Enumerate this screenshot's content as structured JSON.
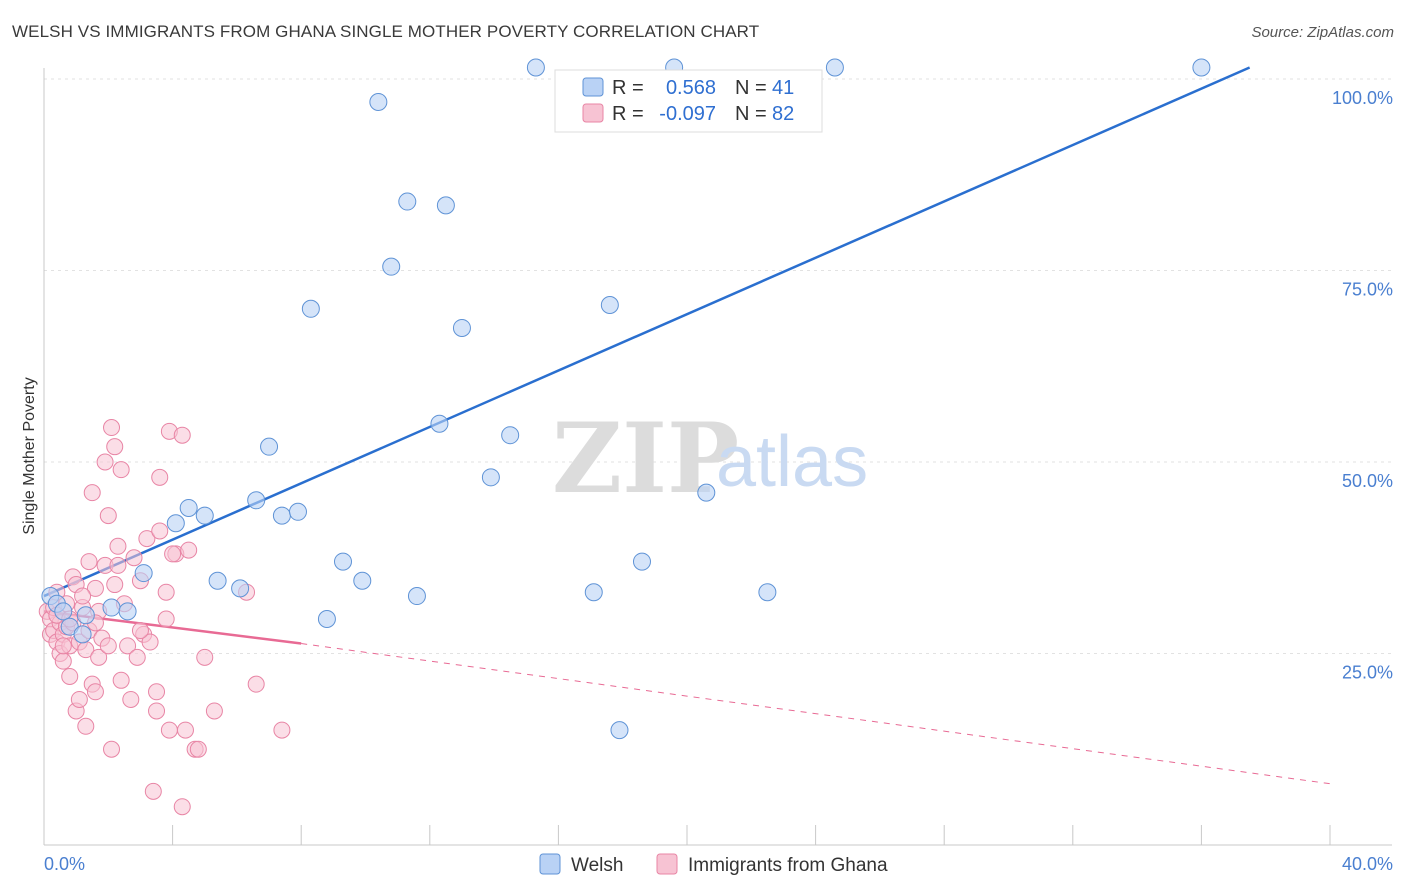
{
  "header": {
    "title": "WELSH VS IMMIGRANTS FROM GHANA SINGLE MOTHER POVERTY CORRELATION CHART",
    "source": "Source: ZipAtlas.com"
  },
  "watermark": {
    "zip": "ZIP",
    "atlas": "atlas"
  },
  "colors": {
    "welsh_fill": "#b9d2f5",
    "welsh_stroke": "#5f93d6",
    "welsh_line": "#2a6fcf",
    "ghana_fill": "#f7c3d3",
    "ghana_stroke": "#e885a5",
    "ghana_line": "#e86a94",
    "grid": "#e2e2e2",
    "axis": "#c8c8c8"
  },
  "legend": {
    "rows": [
      {
        "r_label": "R =",
        "r_value": "0.568",
        "n_label": "N =",
        "n_value": "41"
      },
      {
        "r_label": "R =",
        "r_value": "-0.097",
        "n_label": "N =",
        "n_value": "82"
      }
    ]
  },
  "chart_data": {
    "type": "scatter",
    "title": "WELSH VS IMMIGRANTS FROM GHANA SINGLE MOTHER POVERTY CORRELATION CHART",
    "ylabel": "Single Mother Poverty",
    "xlabel": "",
    "xlim": [
      0,
      40
    ],
    "ylim": [
      0,
      100
    ],
    "x_tick_labels": [
      "0.0%",
      "40.0%"
    ],
    "y_tick_labels": [
      "25.0%",
      "50.0%",
      "75.0%",
      "100.0%"
    ],
    "y_ticks": [
      25,
      50,
      75,
      100
    ],
    "series": [
      {
        "name": "Welsh",
        "r": 0.568,
        "n": 41,
        "points": [
          [
            0.2,
            32.5
          ],
          [
            0.4,
            31.5
          ],
          [
            0.6,
            30.5
          ],
          [
            0.8,
            28.5
          ],
          [
            1.3,
            30.0
          ],
          [
            1.2,
            27.5
          ],
          [
            2.1,
            31.0
          ],
          [
            2.6,
            30.5
          ],
          [
            3.1,
            35.5
          ],
          [
            4.1,
            42.0
          ],
          [
            4.5,
            44.0
          ],
          [
            5.0,
            43.0
          ],
          [
            5.4,
            34.5
          ],
          [
            6.1,
            33.5
          ],
          [
            6.6,
            45.0
          ],
          [
            7.0,
            52.0
          ],
          [
            7.4,
            43.0
          ],
          [
            7.9,
            43.5
          ],
          [
            8.3,
            70.0
          ],
          [
            8.8,
            29.5
          ],
          [
            9.3,
            37.0
          ],
          [
            9.9,
            34.5
          ],
          [
            10.4,
            97.0
          ],
          [
            10.8,
            75.5
          ],
          [
            11.3,
            84.0
          ],
          [
            11.6,
            32.5
          ],
          [
            12.3,
            55.0
          ],
          [
            12.5,
            83.5
          ],
          [
            13.0,
            67.5
          ],
          [
            13.9,
            48.0
          ],
          [
            14.5,
            53.5
          ],
          [
            15.3,
            101.5
          ],
          [
            17.1,
            33.0
          ],
          [
            17.6,
            70.5
          ],
          [
            17.9,
            15.0
          ],
          [
            18.6,
            37.0
          ],
          [
            19.6,
            101.5
          ],
          [
            20.6,
            46.0
          ],
          [
            22.5,
            33.0
          ],
          [
            24.6,
            101.5
          ],
          [
            36.0,
            101.5
          ]
        ],
        "trend": {
          "x0": 0,
          "y0": 32.5,
          "x1": 37.5,
          "y1": 101.5
        }
      },
      {
        "name": "Immigrants from Ghana",
        "r": -0.097,
        "n": 82,
        "points": [
          [
            0.1,
            30.5
          ],
          [
            0.2,
            29.5
          ],
          [
            0.2,
            27.5
          ],
          [
            0.3,
            31.0
          ],
          [
            0.3,
            28.0
          ],
          [
            0.4,
            26.5
          ],
          [
            0.4,
            33.0
          ],
          [
            0.5,
            29.0
          ],
          [
            0.5,
            25.0
          ],
          [
            0.6,
            27.5
          ],
          [
            0.6,
            24.0
          ],
          [
            0.7,
            31.5
          ],
          [
            0.7,
            28.5
          ],
          [
            0.8,
            26.0
          ],
          [
            0.8,
            22.0
          ],
          [
            0.9,
            35.0
          ],
          [
            0.9,
            29.0
          ],
          [
            1.0,
            17.5
          ],
          [
            1.0,
            34.0
          ],
          [
            1.1,
            26.5
          ],
          [
            1.1,
            19.0
          ],
          [
            1.2,
            31.0
          ],
          [
            1.3,
            25.5
          ],
          [
            1.3,
            15.5
          ],
          [
            1.4,
            37.0
          ],
          [
            1.4,
            28.0
          ],
          [
            1.5,
            46.0
          ],
          [
            1.5,
            21.0
          ],
          [
            1.6,
            33.5
          ],
          [
            1.6,
            20.0
          ],
          [
            1.7,
            30.5
          ],
          [
            1.7,
            24.5
          ],
          [
            1.8,
            27.0
          ],
          [
            1.9,
            36.5
          ],
          [
            1.9,
            50.0
          ],
          [
            2.0,
            43.0
          ],
          [
            2.0,
            26.0
          ],
          [
            2.1,
            54.5
          ],
          [
            2.1,
            12.5
          ],
          [
            2.2,
            34.0
          ],
          [
            2.2,
            52.0
          ],
          [
            2.3,
            39.0
          ],
          [
            2.4,
            49.0
          ],
          [
            2.4,
            21.5
          ],
          [
            2.5,
            31.5
          ],
          [
            2.6,
            26.0
          ],
          [
            2.7,
            19.0
          ],
          [
            2.8,
            37.5
          ],
          [
            2.9,
            24.5
          ],
          [
            3.0,
            34.5
          ],
          [
            3.1,
            27.5
          ],
          [
            3.2,
            40.0
          ],
          [
            3.3,
            26.5
          ],
          [
            3.4,
            7.0
          ],
          [
            3.5,
            20.0
          ],
          [
            3.5,
            17.5
          ],
          [
            3.6,
            48.0
          ],
          [
            3.6,
            41.0
          ],
          [
            3.8,
            33.0
          ],
          [
            3.8,
            29.5
          ],
          [
            3.9,
            54.0
          ],
          [
            3.9,
            15.0
          ],
          [
            4.1,
            38.0
          ],
          [
            4.3,
            5.0
          ],
          [
            4.3,
            53.5
          ],
          [
            4.4,
            15.0
          ],
          [
            4.5,
            38.5
          ],
          [
            4.7,
            12.5
          ],
          [
            4.8,
            12.5
          ],
          [
            5.0,
            24.5
          ],
          [
            5.3,
            17.5
          ],
          [
            6.3,
            33.0
          ],
          [
            6.6,
            21.0
          ],
          [
            7.4,
            15.0
          ],
          [
            0.4,
            30.0
          ],
          [
            0.6,
            26.0
          ],
          [
            0.8,
            29.5
          ],
          [
            1.2,
            32.5
          ],
          [
            1.6,
            29.0
          ],
          [
            2.3,
            36.5
          ],
          [
            3.0,
            28.0
          ],
          [
            4.0,
            38.0
          ]
        ],
        "trend": {
          "x0": 0,
          "y0": 30.5,
          "x1": 8.0,
          "y1": 26.3
        },
        "trend_dashed": {
          "x0": 8.0,
          "y0": 26.3,
          "x1": 40.0,
          "y1": 8.0
        }
      }
    ]
  },
  "bottom_legend": {
    "items": [
      "Welsh",
      "Immigrants from Ghana"
    ]
  }
}
